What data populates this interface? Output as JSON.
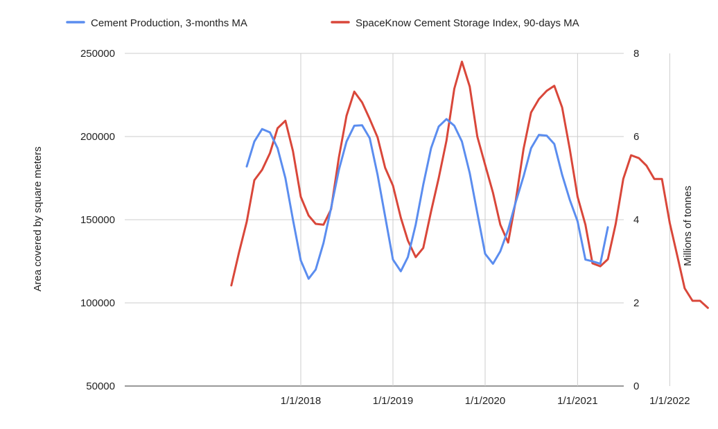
{
  "chart_data": {
    "type": "line",
    "title": "",
    "xlabel": "",
    "ylabel_left": "Area covered by square meters",
    "ylabel_right": "Millions of tonnes",
    "ylim_left": [
      50000,
      250000
    ],
    "ylim_right": [
      0,
      8
    ],
    "left_ticks": [
      "50000",
      "100000",
      "150000",
      "200000",
      "250000"
    ],
    "right_ticks": [
      "0",
      "2",
      "4",
      "6",
      "8"
    ],
    "x_ticks": [
      "1/1/2018",
      "1/1/2019",
      "1/1/2020",
      "1/1/2021",
      "1/1/2022"
    ],
    "grid": true,
    "legend_position": "top",
    "series": [
      {
        "name": "Cement Production, 3-months MA",
        "axis": "left",
        "color": "#5b8def",
        "points": [
          [
            "2017-06-01",
            182000
          ],
          [
            "2017-07-01",
            197000
          ],
          [
            "2017-08-01",
            204500
          ],
          [
            "2017-09-01",
            202500
          ],
          [
            "2017-10-01",
            193000
          ],
          [
            "2017-11-01",
            175000
          ],
          [
            "2017-12-01",
            150000
          ],
          [
            "2018-01-01",
            125500
          ],
          [
            "2018-02-01",
            114500
          ],
          [
            "2018-03-01",
            120000
          ],
          [
            "2018-04-01",
            136000
          ],
          [
            "2018-05-01",
            157000
          ],
          [
            "2018-06-01",
            180000
          ],
          [
            "2018-07-01",
            197000
          ],
          [
            "2018-08-01",
            206500
          ],
          [
            "2018-09-01",
            206800
          ],
          [
            "2018-10-01",
            199000
          ],
          [
            "2018-11-01",
            177000
          ],
          [
            "2018-12-01",
            152000
          ],
          [
            "2019-01-01",
            126000
          ],
          [
            "2019-02-01",
            119000
          ],
          [
            "2019-03-01",
            127500
          ],
          [
            "2019-04-01",
            147000
          ],
          [
            "2019-05-01",
            171000
          ],
          [
            "2019-06-01",
            193000
          ],
          [
            "2019-07-01",
            206000
          ],
          [
            "2019-08-01",
            210500
          ],
          [
            "2019-09-01",
            206500
          ],
          [
            "2019-10-01",
            197000
          ],
          [
            "2019-11-01",
            178000
          ],
          [
            "2019-12-01",
            154000
          ],
          [
            "2020-01-01",
            129500
          ],
          [
            "2020-02-01",
            123500
          ],
          [
            "2020-03-01",
            131000
          ],
          [
            "2020-04-01",
            144000
          ],
          [
            "2020-05-01",
            160500
          ],
          [
            "2020-06-01",
            176000
          ],
          [
            "2020-07-01",
            193000
          ],
          [
            "2020-08-01",
            201000
          ],
          [
            "2020-09-01",
            200500
          ],
          [
            "2020-10-01",
            195500
          ],
          [
            "2020-11-01",
            177000
          ],
          [
            "2020-12-01",
            162000
          ],
          [
            "2021-01-01",
            149000
          ],
          [
            "2021-02-01",
            126000
          ],
          [
            "2021-03-01",
            125000
          ],
          [
            "2021-04-01",
            123500
          ],
          [
            "2021-05-01",
            145500
          ]
        ]
      },
      {
        "name": "SpaceKnow Cement Storage Index, 90-days MA",
        "axis": "right",
        "color": "#d9473a",
        "points": [
          [
            "2017-04-01",
            2.42
          ],
          [
            "2017-05-01",
            3.2
          ],
          [
            "2017-06-01",
            3.95
          ],
          [
            "2017-07-01",
            4.95
          ],
          [
            "2017-08-01",
            5.2
          ],
          [
            "2017-09-01",
            5.6
          ],
          [
            "2017-10-01",
            6.2
          ],
          [
            "2017-11-01",
            6.38
          ],
          [
            "2017-12-01",
            5.65
          ],
          [
            "2018-01-01",
            4.55
          ],
          [
            "2018-02-01",
            4.1
          ],
          [
            "2018-03-01",
            3.9
          ],
          [
            "2018-04-01",
            3.88
          ],
          [
            "2018-05-01",
            4.25
          ],
          [
            "2018-06-01",
            5.5
          ],
          [
            "2018-07-01",
            6.5
          ],
          [
            "2018-08-01",
            7.08
          ],
          [
            "2018-09-01",
            6.82
          ],
          [
            "2018-10-01",
            6.42
          ],
          [
            "2018-11-01",
            5.98
          ],
          [
            "2018-12-01",
            5.25
          ],
          [
            "2019-01-01",
            4.82
          ],
          [
            "2019-02-01",
            4.05
          ],
          [
            "2019-03-01",
            3.5
          ],
          [
            "2019-04-01",
            3.1
          ],
          [
            "2019-05-01",
            3.32
          ],
          [
            "2019-06-01",
            4.2
          ],
          [
            "2019-07-01",
            5.0
          ],
          [
            "2019-08-01",
            5.9
          ],
          [
            "2019-09-01",
            7.15
          ],
          [
            "2019-10-01",
            7.8
          ],
          [
            "2019-11-01",
            7.2
          ],
          [
            "2019-12-01",
            6.0
          ],
          [
            "2020-01-01",
            5.32
          ],
          [
            "2020-02-01",
            4.65
          ],
          [
            "2020-03-01",
            3.88
          ],
          [
            "2020-04-01",
            3.45
          ],
          [
            "2020-05-01",
            4.45
          ],
          [
            "2020-06-01",
            5.7
          ],
          [
            "2020-07-01",
            6.58
          ],
          [
            "2020-08-01",
            6.9
          ],
          [
            "2020-09-01",
            7.1
          ],
          [
            "2020-10-01",
            7.22
          ],
          [
            "2020-11-01",
            6.7
          ],
          [
            "2020-12-01",
            5.7
          ],
          [
            "2021-01-01",
            4.55
          ],
          [
            "2021-02-01",
            3.88
          ],
          [
            "2021-03-01",
            2.95
          ],
          [
            "2021-04-01",
            2.88
          ],
          [
            "2021-05-01",
            3.05
          ],
          [
            "2021-06-01",
            3.9
          ],
          [
            "2021-07-01",
            4.98
          ],
          [
            "2021-08-01",
            5.55
          ],
          [
            "2021-09-01",
            5.48
          ],
          [
            "2021-10-01",
            5.3
          ],
          [
            "2021-11-01",
            4.98
          ],
          [
            "2021-12-01",
            4.98
          ],
          [
            "2022-01-01",
            3.92
          ],
          [
            "2022-02-01",
            3.1
          ],
          [
            "2022-03-01",
            2.35
          ],
          [
            "2022-04-01",
            2.05
          ],
          [
            "2022-05-01",
            2.05
          ],
          [
            "2022-06-01",
            1.88
          ]
        ]
      }
    ]
  }
}
